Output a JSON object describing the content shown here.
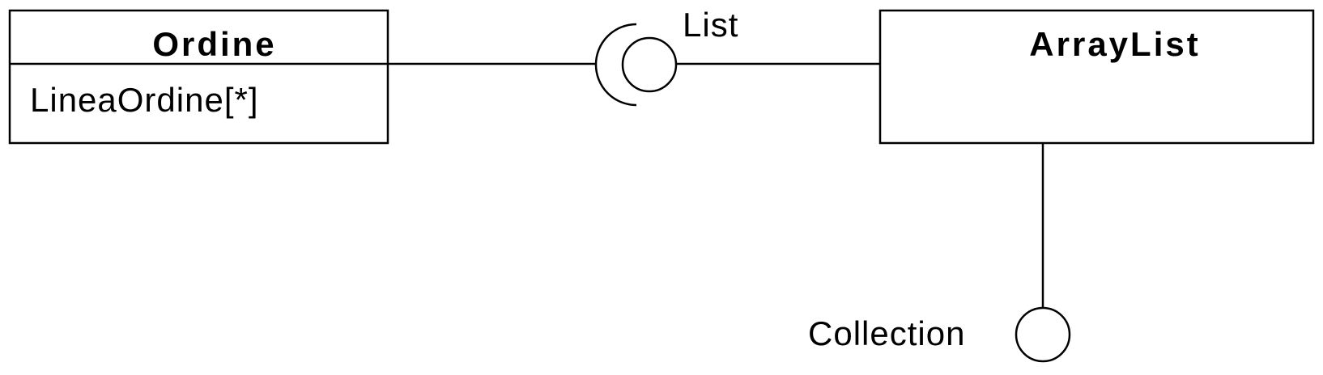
{
  "classes": {
    "ordine": {
      "name": "Ordine",
      "attributes": [
        "LineaOrdine[*]"
      ]
    },
    "arraylist": {
      "name": "ArrayList",
      "attributes": []
    }
  },
  "interfaces": {
    "list": {
      "name": "List"
    },
    "collection": {
      "name": "Collection"
    }
  }
}
